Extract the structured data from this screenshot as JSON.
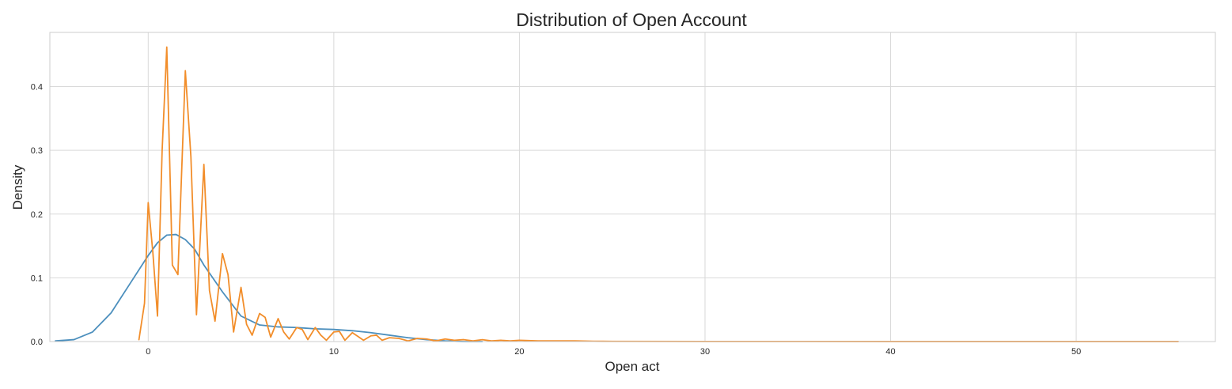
{
  "chart_data": {
    "type": "line",
    "title": "Distribution of Open Account",
    "xlabel": "Open act",
    "ylabel": "Density",
    "xlim": [
      -5.3,
      57.5
    ],
    "ylim": [
      0,
      0.485
    ],
    "xticks": [
      0,
      10,
      20,
      30,
      40,
      50
    ],
    "yticks": [
      0.0,
      0.1,
      0.2,
      0.3,
      0.4
    ],
    "grid": true,
    "colors": {
      "kde": "#4c8fbd",
      "hist": "#f28e2b",
      "grid": "#d9d9d9",
      "frame": "#cccccc"
    },
    "series": [
      {
        "x": [
          -5.0,
          -4.0,
          -3.0,
          -2.0,
          -1.0,
          0.0,
          0.5,
          1.0,
          1.5,
          2.0,
          2.5,
          3.0,
          4.0,
          5.0,
          6.0,
          7.0,
          8.0,
          9.0,
          10.0,
          11.0,
          12.0,
          13.0,
          14.0,
          15.0,
          16.0,
          17.0,
          18.0
        ],
        "y": [
          0.001,
          0.003,
          0.015,
          0.045,
          0.09,
          0.135,
          0.155,
          0.167,
          0.168,
          0.16,
          0.145,
          0.12,
          0.078,
          0.04,
          0.026,
          0.023,
          0.022,
          0.02,
          0.019,
          0.017,
          0.014,
          0.01,
          0.006,
          0.003,
          0.001,
          0.0,
          0.0
        ]
      },
      {
        "x": [
          -0.5,
          -0.2,
          0.0,
          0.25,
          0.5,
          0.75,
          1.0,
          1.3,
          1.6,
          2.0,
          2.3,
          2.6,
          3.0,
          3.3,
          3.6,
          4.0,
          4.3,
          4.6,
          5.0,
          5.3,
          5.6,
          6.0,
          6.3,
          6.6,
          7.0,
          7.3,
          7.6,
          8.0,
          8.3,
          8.6,
          9.0,
          9.3,
          9.6,
          10.0,
          10.3,
          10.6,
          11.0,
          11.3,
          11.6,
          12.0,
          12.3,
          12.6,
          13.0,
          13.5,
          14.0,
          14.5,
          15.0,
          15.5,
          16.0,
          16.5,
          17.0,
          17.5,
          18.0,
          18.5,
          19.0,
          19.5,
          20.0,
          21.0,
          22.0,
          23.0,
          24.0,
          25.0,
          30.0,
          40.0,
          50.0,
          55.5
        ],
        "y": [
          0.003,
          0.06,
          0.218,
          0.14,
          0.04,
          0.3,
          0.462,
          0.12,
          0.105,
          0.425,
          0.29,
          0.042,
          0.278,
          0.08,
          0.032,
          0.138,
          0.105,
          0.015,
          0.085,
          0.027,
          0.01,
          0.044,
          0.038,
          0.007,
          0.036,
          0.015,
          0.004,
          0.022,
          0.019,
          0.003,
          0.022,
          0.01,
          0.002,
          0.015,
          0.016,
          0.002,
          0.014,
          0.008,
          0.002,
          0.009,
          0.01,
          0.002,
          0.006,
          0.005,
          0.001,
          0.005,
          0.004,
          0.001,
          0.004,
          0.002,
          0.003,
          0.001,
          0.003,
          0.001,
          0.002,
          0.001,
          0.002,
          0.001,
          0.001,
          0.001,
          0.0005,
          0.0003,
          0.0002,
          0.0001,
          0.0001,
          0.0001
        ]
      }
    ]
  }
}
